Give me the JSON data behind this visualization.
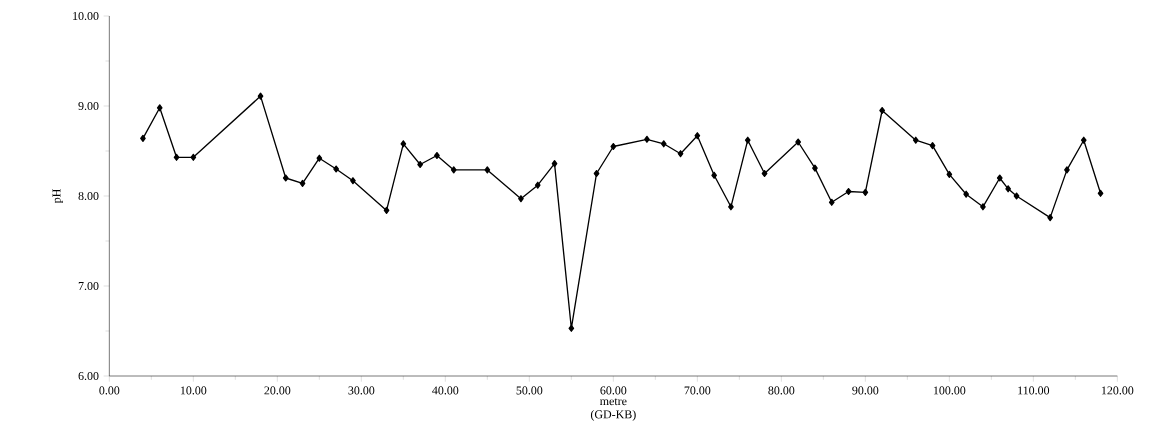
{
  "chart_data": {
    "type": "line",
    "xlabel": "metre\n(GD-KB)",
    "ylabel": "pH",
    "x": [
      4,
      6,
      8,
      10,
      18,
      21,
      23,
      25,
      27,
      29,
      33,
      35,
      37,
      39,
      41,
      45,
      49,
      51,
      53,
      55,
      58,
      60,
      64,
      66,
      68,
      70,
      72,
      74,
      76,
      78,
      82,
      84,
      86,
      88,
      90,
      92,
      96,
      98,
      100,
      102,
      104,
      106,
      107,
      108,
      112,
      114,
      116,
      118
    ],
    "values": [
      8.64,
      8.98,
      8.43,
      8.43,
      9.11,
      8.2,
      8.14,
      8.42,
      8.3,
      8.17,
      7.84,
      8.58,
      8.35,
      8.45,
      8.29,
      8.29,
      7.97,
      8.12,
      8.36,
      6.53,
      8.25,
      8.55,
      8.63,
      8.58,
      8.47,
      8.67,
      8.23,
      7.88,
      8.62,
      8.25,
      8.6,
      8.31,
      7.93,
      8.05,
      8.04,
      8.95,
      8.62,
      8.56,
      8.24,
      8.02,
      7.88,
      8.2,
      8.08,
      8.0,
      7.76,
      8.29,
      8.62,
      8.03
    ],
    "color": "#000000",
    "marker": "diamond",
    "line_style": "solid",
    "xlim": [
      0,
      120
    ],
    "ylim": [
      6,
      10
    ],
    "xticks": [
      {
        "value": 0,
        "label": "0.00"
      },
      {
        "value": 10,
        "label": "10.00"
      },
      {
        "value": 20,
        "label": "20.00"
      },
      {
        "value": 30,
        "label": "30.00"
      },
      {
        "value": 40,
        "label": "40.00"
      },
      {
        "value": 50,
        "label": "50.00"
      },
      {
        "value": 60,
        "label": "60.00"
      },
      {
        "value": 70,
        "label": "70.00"
      },
      {
        "value": 80,
        "label": "80.00"
      },
      {
        "value": 90,
        "label": "90.00"
      },
      {
        "value": 100,
        "label": "100.00"
      },
      {
        "value": 110,
        "label": "110.00"
      },
      {
        "value": 120,
        "label": "120.00"
      }
    ],
    "yticks": [
      {
        "value": 6,
        "label": "6.00"
      },
      {
        "value": 7,
        "label": "7.00"
      },
      {
        "value": 8,
        "label": "8.00"
      },
      {
        "value": 9,
        "label": "9.00"
      },
      {
        "value": 10,
        "label": "10.00"
      }
    ]
  }
}
